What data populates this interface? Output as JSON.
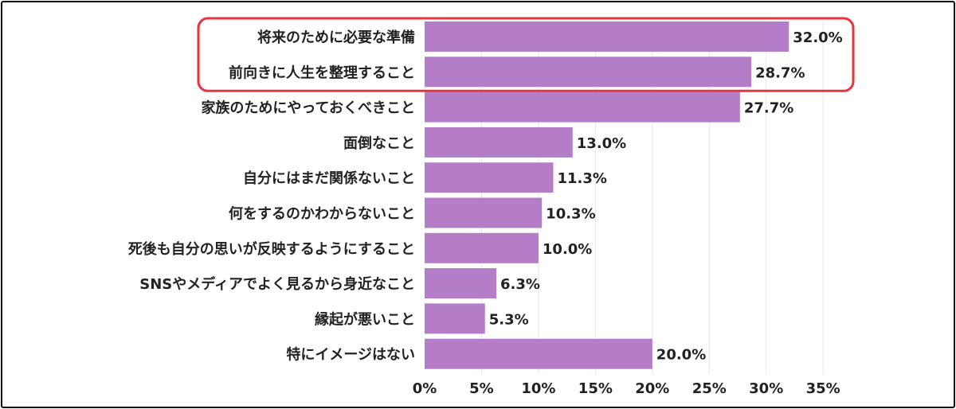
{
  "chart_data": {
    "type": "bar",
    "orientation": "horizontal",
    "categories": [
      "将来のために必要な準備",
      "前向きに人生を整理すること",
      "家族のためにやっておくべきこと",
      "面倒なこと",
      "自分にはまだ関係ないこと",
      "何をするのかわからないこと",
      "死後も自分の思いが反映するようにすること",
      "SNSやメディアでよく見るから身近なこと",
      "縁起が悪いこと",
      "特にイメージはない"
    ],
    "values": [
      32.0,
      28.7,
      27.7,
      13.0,
      11.3,
      10.3,
      10.0,
      6.3,
      5.3,
      20.0
    ],
    "value_labels": [
      "32.0%",
      "28.7%",
      "27.7%",
      "13.0%",
      "11.3%",
      "10.3%",
      "10.0%",
      "6.3%",
      "5.3%",
      "20.0%"
    ],
    "x_ticks": [
      "0%",
      "5%",
      "10%",
      "15%",
      "20%",
      "25%",
      "30%",
      "35%"
    ],
    "xlim": [
      0,
      35
    ],
    "grid": true,
    "highlighted_categories": [
      0,
      1
    ],
    "colors": {
      "bar": "#b57cc8",
      "highlight_box": "#e8343f",
      "text": "#222222",
      "grid": "#e6e6e6"
    }
  }
}
